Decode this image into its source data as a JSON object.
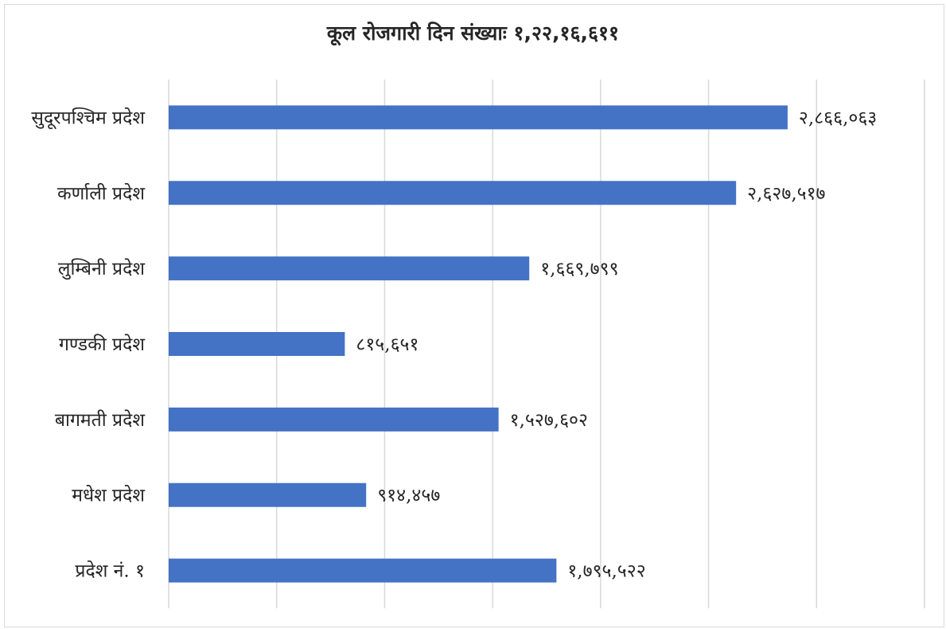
{
  "chart_data": {
    "type": "bar",
    "orientation": "horizontal",
    "title": "कूल रोजगारी दिन संख्याः १,२२,१६,६११",
    "xlabel": "",
    "ylabel": "",
    "xlim": [
      0,
      3500000
    ],
    "grid": true,
    "legend": "none",
    "categories": [
      "सुदूरपश्चिम प्रदेश",
      "कर्णाली प्रदेश",
      "लुम्बिनी प्रदेश",
      "गण्डकी प्रदेश",
      "बागमती प्रदेश",
      "मधेश प्रदेश",
      "प्रदेश नं. १"
    ],
    "values": [
      2866063,
      2627517,
      1669799,
      815651,
      1527602,
      914457,
      1795522
    ],
    "value_labels": [
      "२,८६६,०६३",
      "२,६२७,५१७",
      "१,६६९,७९९",
      "८१५,६५१",
      "१,५२७,६०२",
      "९१४,४५७",
      "१,७९५,५२२"
    ],
    "bar_color": "#4472c4",
    "grid_color": "#d9d9d9"
  }
}
